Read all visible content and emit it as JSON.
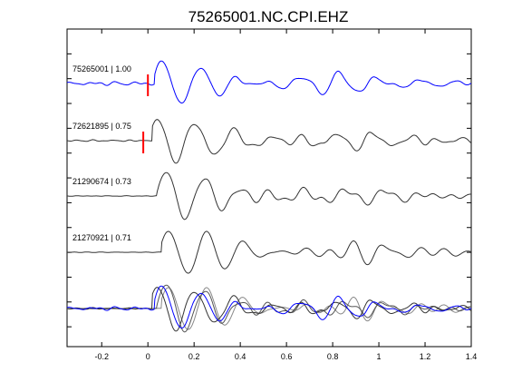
{
  "chart_data": {
    "type": "line",
    "title": "75265001.NC.CPI.EHZ",
    "xlabel": "",
    "ylabel": "",
    "xlim": [
      -0.35,
      1.4
    ],
    "x_ticks": [
      -0.2,
      0,
      0.2,
      0.4,
      0.6,
      0.8,
      1,
      1.2,
      1.4
    ],
    "x_tick_labels": [
      "-0.2",
      "0",
      "0.2",
      "0.4",
      "0.6",
      "0.8",
      "1",
      "1.2",
      "1.4"
    ],
    "y_visible": false,
    "grid": false,
    "legend": "none",
    "pick_color": "#ff0000",
    "traces": [
      {
        "label": "75265001 | 1.00",
        "color": "#0000ff",
        "pick_x": 0.0
      },
      {
        "label": "72621895 | 0.75",
        "color": "#333333",
        "pick_x": -0.02
      },
      {
        "label": "21290674 | 0.73",
        "color": "#333333"
      },
      {
        "label": "21270921 | 0.71",
        "color": "#333333"
      }
    ],
    "overlay": {
      "series_colors": [
        "#0000ff",
        "#333333",
        "#555555",
        "#888888"
      ]
    }
  }
}
